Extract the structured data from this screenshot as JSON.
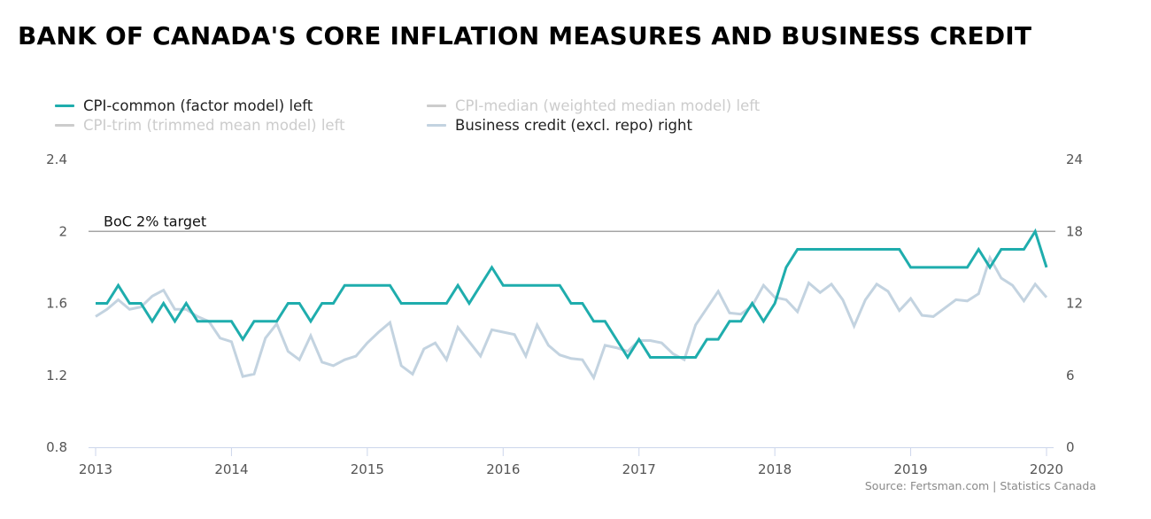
{
  "title": "BANK OF CANADA'S CORE INFLATION MEASURES AND BUSINESS CREDIT",
  "source": "Source: Fertsman.com | Statistics Canada",
  "colors": {
    "cpi_common": "#1fadad",
    "cpi_median": "#cccccc",
    "cpi_trim": "#cccccc",
    "business_credit": "#c3d3e0",
    "target_line": "#a6a6a6",
    "axis_line": "#ccd6eb"
  },
  "legend": [
    {
      "label": "CPI-common (factor model) left",
      "color": "#1fadad",
      "active": true
    },
    {
      "label": "CPI-median (weighted median model) left",
      "color": "#cccccc",
      "active": false
    },
    {
      "label": "CPI-trim (trimmed mean model) left",
      "color": "#cccccc",
      "active": false
    },
    {
      "label": "Business credit (excl. repo) right",
      "color": "#c3d3e0",
      "active": true
    }
  ],
  "chart_data": {
    "type": "line",
    "title": "BANK OF CANADA'S CORE INFLATION MEASURES AND BUSINESS CREDIT",
    "x_start": "2013-01",
    "x_end": "2020-01",
    "x_frequency": "monthly",
    "x_tick_labels": [
      "2013",
      "2014",
      "2015",
      "2016",
      "2017",
      "2018",
      "2019",
      "2020"
    ],
    "x_range": [
      2013,
      2020
    ],
    "y_left": {
      "ticks": [
        "0.8",
        "1.2",
        "1.6",
        "2",
        "2.4"
      ],
      "range": [
        0.8,
        2.4
      ]
    },
    "y_right": {
      "ticks": [
        "0",
        "6",
        "12",
        "18",
        "24"
      ],
      "range": [
        0,
        24
      ]
    },
    "grid": false,
    "legend_position": "top-left",
    "annotations": [
      {
        "label": "BoC 2% target",
        "y": 2,
        "axis": "left"
      }
    ],
    "series": [
      {
        "name": "CPI-common (factor model) left",
        "axis": "left",
        "visible": true,
        "values": [
          1.6,
          1.6,
          1.7,
          1.6,
          1.6,
          1.5,
          1.6,
          1.5,
          1.6,
          1.5,
          1.5,
          1.5,
          1.5,
          1.4,
          1.5,
          1.5,
          1.5,
          1.6,
          1.6,
          1.5,
          1.6,
          1.6,
          1.7,
          1.7,
          1.7,
          1.7,
          1.7,
          1.6,
          1.6,
          1.6,
          1.6,
          1.6,
          1.7,
          1.6,
          1.7,
          1.8,
          1.7,
          1.7,
          1.7,
          1.7,
          1.7,
          1.7,
          1.6,
          1.6,
          1.5,
          1.5,
          1.4,
          1.3,
          1.4,
          1.3,
          1.3,
          1.3,
          1.3,
          1.3,
          1.4,
          1.4,
          1.5,
          1.5,
          1.6,
          1.5,
          1.6,
          1.8,
          1.9,
          1.9,
          1.9,
          1.9,
          1.9,
          1.9,
          1.9,
          1.9,
          1.9,
          1.9,
          1.8,
          1.8,
          1.8,
          1.8,
          1.8,
          1.8,
          1.9,
          1.8,
          1.9,
          1.9,
          1.9,
          2.0,
          1.8
        ]
      },
      {
        "name": "CPI-median (weighted median model) left",
        "axis": "left",
        "visible": false,
        "values": []
      },
      {
        "name": "CPI-trim (trimmed mean model) left",
        "axis": "left",
        "visible": false,
        "values": []
      },
      {
        "name": "Business credit (excl. repo) right",
        "axis": "right",
        "visible": true,
        "values": [
          10.9,
          11.5,
          12.3,
          11.5,
          11.7,
          12.6,
          13.1,
          11.5,
          11.5,
          10.9,
          10.5,
          9.1,
          8.8,
          5.9,
          6.1,
          9.1,
          10.3,
          8.0,
          7.3,
          9.3,
          7.1,
          6.8,
          7.3,
          7.6,
          8.7,
          9.6,
          10.4,
          6.8,
          6.1,
          8.2,
          8.7,
          7.3,
          10.0,
          8.8,
          7.6,
          9.8,
          9.6,
          9.4,
          7.6,
          10.2,
          8.5,
          7.7,
          7.4,
          7.3,
          5.8,
          8.5,
          8.3,
          8.0,
          8.9,
          8.9,
          8.7,
          7.8,
          7.3,
          10.2,
          11.6,
          13.0,
          11.2,
          11.1,
          11.8,
          13.5,
          12.5,
          12.3,
          11.3,
          13.7,
          12.9,
          13.6,
          12.3,
          10.1,
          12.3,
          13.6,
          13.0,
          11.4,
          12.4,
          11.0,
          10.9,
          11.6,
          12.3,
          12.2,
          12.8,
          15.8,
          14.1,
          13.5,
          12.2,
          13.6,
          12.5
        ]
      }
    ]
  }
}
